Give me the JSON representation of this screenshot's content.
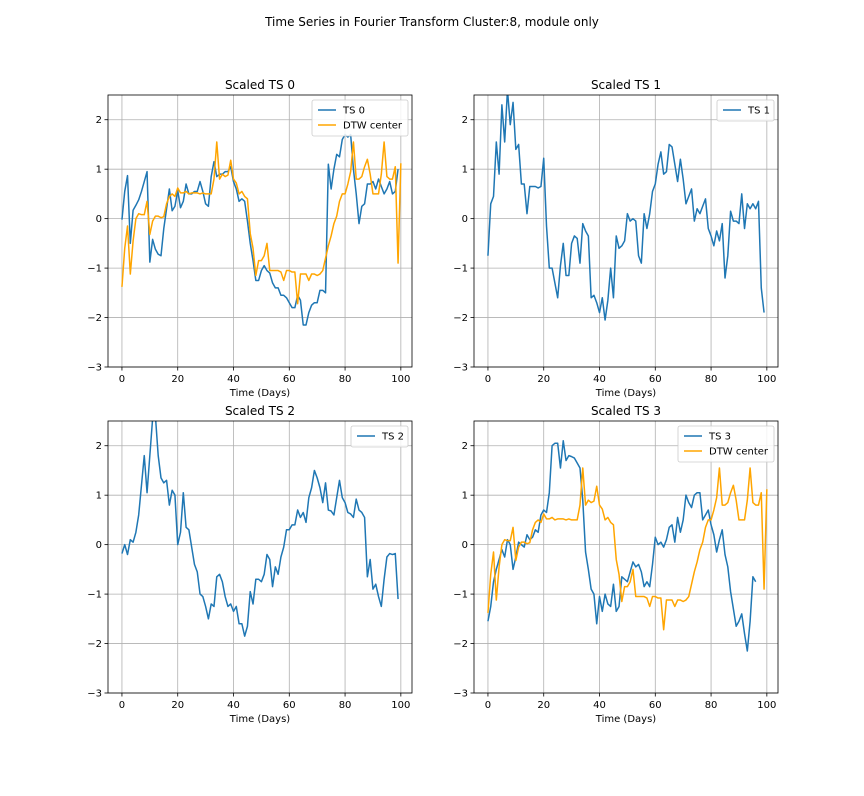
{
  "figure": {
    "suptitle": "Time Series in Fourier Transform Cluster:8, module only"
  },
  "colors": {
    "ts": "#1f77b4",
    "center": "#ffa500",
    "grid": "#b0b0b0"
  },
  "chart_data": [
    {
      "type": "line",
      "title": "Scaled TS 0",
      "xlabel": "Time (Days)",
      "ylabel": "",
      "xlim": [
        -5,
        104
      ],
      "ylim": [
        -3,
        2.5
      ],
      "xticks": [
        0,
        20,
        40,
        60,
        80,
        100
      ],
      "yticks": [
        -3,
        -2,
        -1,
        0,
        1,
        2
      ],
      "grid": true,
      "legend_position": "upper-right",
      "series": [
        {
          "name": "TS 0",
          "color": "#1f77b4",
          "values": [
            -0.02,
            0.55,
            0.87,
            -0.5,
            0.17,
            0.27,
            0.38,
            0.55,
            0.75,
            0.95,
            -0.88,
            -0.42,
            -0.62,
            -0.72,
            -0.75,
            -0.2,
            0.2,
            0.6,
            0.16,
            0.25,
            0.57,
            0.22,
            0.35,
            0.7,
            0.5,
            0.5,
            0.55,
            0.55,
            0.75,
            0.55,
            0.3,
            0.25,
            0.85,
            1.15,
            0.85,
            0.9,
            0.9,
            0.95,
            0.95,
            1.05,
            0.75,
            0.6,
            0.35,
            0.4,
            0.35,
            -0.05,
            -0.5,
            -0.85,
            -1.25,
            -1.25,
            -1.05,
            -0.95,
            -1.05,
            -1.1,
            -1.3,
            -1.4,
            -1.4,
            -1.55,
            -1.55,
            -1.6,
            -1.7,
            -1.8,
            -1.8,
            -1.55,
            -1.65,
            -2.15,
            -2.15,
            -1.9,
            -1.75,
            -1.7,
            -1.7,
            -1.45,
            -1.45,
            -1.5,
            1.1,
            0.6,
            1.0,
            1.3,
            1.25,
            1.6,
            1.7,
            1.65,
            1.7,
            1.0,
            0.5,
            -0.1,
            0.25,
            0.3,
            0.7,
            0.7,
            0.75,
            0.6,
            0.8,
            0.65,
            0.5,
            0.6,
            0.75,
            0.5,
            0.55,
            1.0
          ]
        },
        {
          "name": "DTW center",
          "color": "#ffa500",
          "values": [
            -1.38,
            -0.6,
            -0.15,
            -1.12,
            -0.45,
            0.0,
            0.1,
            0.08,
            0.08,
            0.35,
            -0.32,
            -0.05,
            0.05,
            0.05,
            0.02,
            0.04,
            0.3,
            0.45,
            0.5,
            0.45,
            0.62,
            0.52,
            0.52,
            0.55,
            0.5,
            0.52,
            0.52,
            0.52,
            0.5,
            0.52,
            0.5,
            0.5,
            0.5,
            0.8,
            1.55,
            0.8,
            0.9,
            0.85,
            0.88,
            1.18,
            0.8,
            0.72,
            0.5,
            0.55,
            0.45,
            0.4,
            -0.3,
            -0.6,
            -1.15,
            -0.85,
            -0.85,
            -0.75,
            -0.5,
            -1.05,
            -1.05,
            -1.05,
            -1.05,
            -1.08,
            -1.25,
            -1.05,
            -1.05,
            -1.08,
            -1.08,
            -1.72,
            -1.12,
            -1.12,
            -1.12,
            -1.25,
            -1.12,
            -1.12,
            -1.15,
            -1.12,
            -1.05,
            -0.8,
            -0.55,
            -0.35,
            -0.1,
            0.05,
            0.35,
            0.5,
            0.5,
            0.7,
            0.95,
            1.55,
            0.8,
            0.8,
            0.85,
            1.05,
            1.2,
            0.9,
            0.5,
            0.5,
            0.5,
            0.9,
            1.55,
            0.85,
            0.8,
            0.8,
            1.05,
            -0.9,
            1.12
          ]
        }
      ]
    },
    {
      "type": "line",
      "title": "Scaled TS 1",
      "xlabel": "Time (Days)",
      "ylabel": "",
      "xlim": [
        -5,
        104
      ],
      "ylim": [
        -3,
        2.5
      ],
      "xticks": [
        0,
        20,
        40,
        60,
        80,
        100
      ],
      "yticks": [
        -3,
        -2,
        -1,
        0,
        1,
        2
      ],
      "grid": true,
      "legend_position": "upper-right",
      "series": [
        {
          "name": "TS 1",
          "color": "#1f77b4",
          "values": [
            -0.75,
            0.3,
            0.45,
            1.55,
            0.9,
            2.3,
            1.55,
            2.6,
            1.9,
            2.35,
            1.4,
            1.5,
            0.7,
            0.7,
            0.1,
            0.65,
            0.65,
            0.65,
            0.62,
            0.65,
            1.22,
            -0.15,
            -1.0,
            -1.0,
            -1.3,
            -1.6,
            -0.95,
            -0.5,
            -1.15,
            -1.15,
            -0.5,
            -0.35,
            -0.4,
            -0.9,
            -0.1,
            -0.25,
            -0.35,
            -1.6,
            -1.55,
            -1.7,
            -1.9,
            -1.6,
            -2.05,
            -1.65,
            -1.0,
            -1.6,
            -0.35,
            -0.6,
            -0.55,
            -0.45,
            0.1,
            -0.05,
            0.0,
            -0.05,
            -0.75,
            -0.9,
            0.1,
            -0.2,
            0.1,
            0.55,
            0.7,
            1.1,
            1.35,
            0.9,
            0.95,
            1.5,
            1.45,
            1.1,
            0.75,
            1.2,
            0.8,
            0.3,
            0.45,
            0.6,
            -0.05,
            0.2,
            0.1,
            0.25,
            0.4,
            -0.2,
            -0.35,
            -0.55,
            -0.25,
            -0.45,
            -0.1,
            -1.2,
            -0.75,
            0.15,
            -0.05,
            -0.05,
            -0.1,
            0.5,
            -0.2,
            0.3,
            0.2,
            0.3,
            0.2,
            0.35,
            -1.4,
            -1.9
          ]
        }
      ]
    },
    {
      "type": "line",
      "title": "Scaled TS 2",
      "xlabel": "Time (Days)",
      "ylabel": "",
      "xlim": [
        -5,
        104
      ],
      "ylim": [
        -3,
        2.5
      ],
      "xticks": [
        0,
        20,
        40,
        60,
        80,
        100
      ],
      "yticks": [
        -3,
        -2,
        -1,
        0,
        1,
        2
      ],
      "grid": true,
      "legend_position": "upper-right",
      "series": [
        {
          "name": "TS 2",
          "color": "#1f77b4",
          "values": [
            -0.18,
            0.0,
            -0.2,
            0.1,
            0.05,
            0.25,
            0.6,
            1.2,
            1.8,
            1.05,
            1.8,
            2.55,
            2.6,
            1.8,
            1.35,
            1.25,
            1.3,
            0.8,
            1.1,
            1.0,
            0.0,
            0.25,
            1.05,
            0.35,
            0.3,
            -0.05,
            -0.4,
            -0.55,
            -1.0,
            -1.05,
            -1.25,
            -1.5,
            -1.2,
            -1.25,
            -0.65,
            -0.6,
            -0.75,
            -1.05,
            -1.25,
            -1.2,
            -1.35,
            -1.25,
            -1.6,
            -1.6,
            -1.85,
            -1.65,
            -0.95,
            -1.2,
            -0.7,
            -0.7,
            -0.75,
            -0.6,
            -0.2,
            -0.3,
            -0.85,
            -0.45,
            -0.6,
            -0.25,
            -0.05,
            0.3,
            0.3,
            0.4,
            0.4,
            0.7,
            0.55,
            0.65,
            0.45,
            0.95,
            1.15,
            1.5,
            1.35,
            1.15,
            0.85,
            1.25,
            0.7,
            0.68,
            0.6,
            0.95,
            1.3,
            0.95,
            0.85,
            0.65,
            0.62,
            0.55,
            0.92,
            0.7,
            0.65,
            0.55,
            -0.65,
            -0.3,
            -0.9,
            -0.8,
            -1.05,
            -1.25,
            -0.7,
            -0.25,
            -0.18,
            -0.2,
            -0.18,
            -1.1
          ]
        }
      ]
    },
    {
      "type": "line",
      "title": "Scaled TS 3",
      "xlabel": "Time (Days)",
      "ylabel": "",
      "xlim": [
        -5,
        104
      ],
      "ylim": [
        -3,
        2.5
      ],
      "xticks": [
        0,
        20,
        40,
        60,
        80,
        100
      ],
      "yticks": [
        -3,
        -2,
        -1,
        0,
        1,
        2
      ],
      "grid": true,
      "legend_position": "upper-right",
      "series": [
        {
          "name": "TS 3",
          "color": "#1f77b4",
          "values": [
            -1.55,
            -1.25,
            -0.75,
            -0.5,
            -0.3,
            -0.1,
            -0.25,
            0.1,
            0.0,
            -0.5,
            -0.25,
            0.05,
            0.0,
            -0.05,
            0.2,
            0.1,
            0.15,
            0.3,
            0.25,
            0.6,
            0.7,
            0.65,
            1.05,
            2.0,
            2.05,
            2.05,
            1.55,
            2.1,
            1.7,
            1.8,
            1.78,
            1.75,
            1.65,
            1.55,
            0.9,
            -0.15,
            -0.5,
            -0.9,
            -1.0,
            -1.6,
            -1.05,
            -1.35,
            -1.0,
            -1.2,
            -1.25,
            -0.8,
            -1.35,
            -1.25,
            -0.65,
            -0.7,
            -0.75,
            -0.55,
            -0.35,
            -0.45,
            -0.4,
            -0.55,
            -0.85,
            -0.75,
            -0.85,
            -0.4,
            0.15,
            0.0,
            0.05,
            -0.05,
            0.1,
            0.35,
            0.4,
            0.05,
            0.55,
            0.25,
            0.5,
            1.0,
            0.85,
            0.75,
            1.0,
            1.05,
            1.05,
            0.5,
            0.6,
            0.7,
            0.4,
            0.2,
            -0.15,
            0.1,
            0.3,
            -0.2,
            -0.45,
            -0.95,
            -1.3,
            -1.65,
            -1.55,
            -1.4,
            -1.8,
            -2.15,
            -1.55,
            -0.65,
            -0.75
          ]
        },
        {
          "name": "DTW center",
          "color": "#ffa500",
          "values": [
            -1.38,
            -0.6,
            -0.15,
            -1.12,
            -0.45,
            0.0,
            0.1,
            0.08,
            0.08,
            0.35,
            -0.32,
            -0.05,
            0.05,
            0.05,
            0.02,
            0.04,
            0.3,
            0.45,
            0.5,
            0.45,
            0.62,
            0.52,
            0.52,
            0.55,
            0.5,
            0.52,
            0.52,
            0.52,
            0.5,
            0.52,
            0.5,
            0.5,
            0.5,
            0.8,
            1.55,
            0.8,
            0.9,
            0.85,
            0.88,
            1.18,
            0.8,
            0.72,
            0.5,
            0.55,
            0.45,
            0.4,
            -0.3,
            -0.6,
            -1.15,
            -0.85,
            -0.85,
            -0.75,
            -0.5,
            -1.05,
            -1.05,
            -1.05,
            -1.05,
            -1.08,
            -1.25,
            -1.05,
            -1.05,
            -1.08,
            -1.08,
            -1.72,
            -1.12,
            -1.12,
            -1.12,
            -1.25,
            -1.12,
            -1.12,
            -1.15,
            -1.12,
            -1.05,
            -0.8,
            -0.55,
            -0.35,
            -0.1,
            0.05,
            0.35,
            0.5,
            0.5,
            0.7,
            0.95,
            1.55,
            0.8,
            0.8,
            0.85,
            1.05,
            1.2,
            0.9,
            0.5,
            0.5,
            0.5,
            0.9,
            1.55,
            0.85,
            0.8,
            0.8,
            1.05,
            -0.9,
            1.12
          ]
        }
      ]
    }
  ]
}
